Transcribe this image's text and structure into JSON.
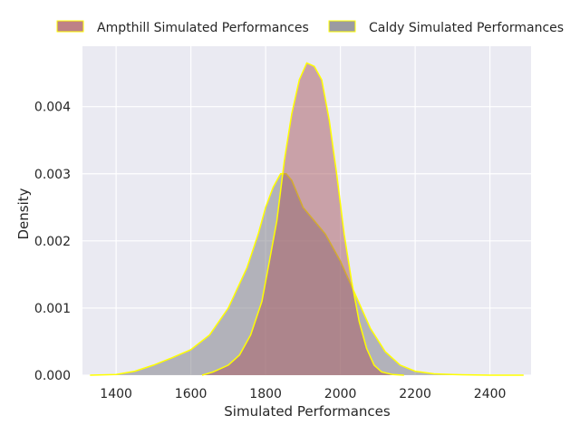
{
  "chart_data": {
    "type": "area",
    "subtype": "kde-density",
    "xlabel": "Simulated Performances",
    "ylabel": "Density",
    "xlim": [
      1310,
      2510
    ],
    "ylim": [
      0,
      0.0049
    ],
    "xticks": [
      1400,
      1600,
      1800,
      2000,
      2200,
      2400
    ],
    "xtick_labels": [
      "1400",
      "1600",
      "1800",
      "2000",
      "2200",
      "2400"
    ],
    "yticks": [
      0,
      0.001,
      0.002,
      0.003,
      0.004
    ],
    "ytick_labels": [
      "0.000",
      "0.001",
      "0.002",
      "0.003",
      "0.004"
    ],
    "grid": true,
    "background": "#eaeaf2",
    "legend": {
      "placement": "top-center",
      "columns": 2
    },
    "series": [
      {
        "name": "Caldy Simulated Performances",
        "fill": "#7a7a82",
        "stroke": "#ffff00",
        "points": [
          [
            1330,
            0.0
          ],
          [
            1400,
            1e-05
          ],
          [
            1450,
            6e-05
          ],
          [
            1500,
            0.00015
          ],
          [
            1550,
            0.00026
          ],
          [
            1600,
            0.00038
          ],
          [
            1650,
            0.0006
          ],
          [
            1700,
            0.001
          ],
          [
            1750,
            0.0016
          ],
          [
            1780,
            0.0021
          ],
          [
            1800,
            0.0025
          ],
          [
            1820,
            0.0028
          ],
          [
            1840,
            0.003
          ],
          [
            1855,
            0.003
          ],
          [
            1870,
            0.0029
          ],
          [
            1900,
            0.0025
          ],
          [
            1930,
            0.0023
          ],
          [
            1960,
            0.0021
          ],
          [
            2000,
            0.0017
          ],
          [
            2040,
            0.0012
          ],
          [
            2080,
            0.0007
          ],
          [
            2120,
            0.00035
          ],
          [
            2160,
            0.00015
          ],
          [
            2200,
            6e-05
          ],
          [
            2250,
            2e-05
          ],
          [
            2300,
            1e-05
          ],
          [
            2400,
            0.0
          ],
          [
            2490,
            0.0
          ]
        ]
      },
      {
        "name": "Ampthill Simulated Performances",
        "fill": "#a8585e",
        "stroke": "#ffff00",
        "points": [
          [
            1630,
            0.0
          ],
          [
            1660,
            5e-05
          ],
          [
            1700,
            0.00015
          ],
          [
            1730,
            0.0003
          ],
          [
            1760,
            0.0006
          ],
          [
            1790,
            0.0011
          ],
          [
            1810,
            0.0017
          ],
          [
            1830,
            0.0023
          ],
          [
            1850,
            0.0032
          ],
          [
            1870,
            0.0039
          ],
          [
            1890,
            0.0044
          ],
          [
            1910,
            0.00465
          ],
          [
            1930,
            0.0046
          ],
          [
            1950,
            0.0044
          ],
          [
            1970,
            0.0038
          ],
          [
            1990,
            0.003
          ],
          [
            2010,
            0.0021
          ],
          [
            2030,
            0.0014
          ],
          [
            2050,
            0.0008
          ],
          [
            2070,
            0.0004
          ],
          [
            2090,
            0.00015
          ],
          [
            2110,
            5e-05
          ],
          [
            2140,
            1e-05
          ],
          [
            2170,
            0.0
          ]
        ]
      }
    ]
  }
}
